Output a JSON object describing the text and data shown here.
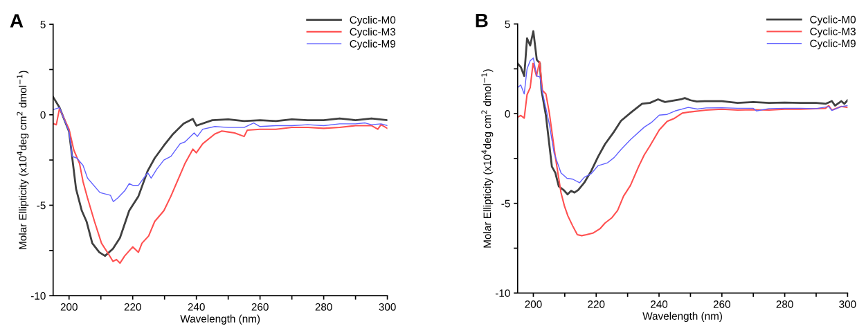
{
  "chart_data": [
    {
      "type": "line",
      "title": "A",
      "xlabel": "Wavelength (nm)",
      "ylabel": "Molar Ellipticity (x10$^{4}$deg cm$^{2}$ dmol$^{−1}$)",
      "xlim": [
        195,
        300
      ],
      "ylim": [
        -10,
        5
      ],
      "xticks": [
        200,
        {
          "value": 210,
          "label": null
        },
        220,
        {
          "value": 230,
          "label": null
        },
        240,
        {
          "value": 250,
          "label": null
        },
        260,
        {
          "value": 270,
          "label": null
        },
        280,
        {
          "value": 290,
          "label": null
        },
        300
      ],
      "yticks": [
        -10,
        {
          "value": -7.5,
          "label": null
        },
        -5,
        {
          "value": -2.5,
          "label": null
        },
        0,
        {
          "value": 2.5,
          "label": null
        },
        5
      ],
      "grid": false,
      "legend": "top right",
      "line_style": "solid",
      "marker": "none",
      "series": [
        {
          "name": "Cyclic-M0",
          "color": "#404040",
          "x": [
            195,
            197,
            200,
            202.2,
            204,
            205.5,
            207.3,
            209.5,
            211.3,
            213.8,
            216,
            218.9,
            221.8,
            224.7,
            226.9,
            229.8,
            232.7,
            236,
            238.9,
            240,
            245,
            250,
            255,
            260,
            265,
            270,
            275,
            280,
            285,
            290,
            295,
            300
          ],
          "values": [
            0.98,
            0.4,
            -0.93,
            -4.1,
            -5.3,
            -5.9,
            -7.1,
            -7.6,
            -7.8,
            -7.4,
            -6.8,
            -5.3,
            -4.5,
            -3.1,
            -2.4,
            -1.7,
            -1.06,
            -0.49,
            -0.23,
            -0.6,
            -0.3,
            -0.25,
            -0.35,
            -0.3,
            -0.35,
            -0.25,
            -0.3,
            -0.3,
            -0.2,
            -0.3,
            -0.2,
            -0.3
          ]
        },
        {
          "name": "Cyclic-M3",
          "color": "#ff5050",
          "x": [
            195,
            196,
            197,
            200,
            201.5,
            203.3,
            204.4,
            205.8,
            208,
            210.2,
            212.4,
            213.8,
            214.9,
            216,
            217.5,
            220,
            221.8,
            222.9,
            225,
            226.9,
            229.8,
            232,
            236.4,
            238.9,
            240,
            242,
            245.8,
            248,
            250,
            252,
            255,
            256,
            260,
            265,
            270,
            275,
            280,
            285,
            290,
            295,
            297,
            298,
            300
          ],
          "values": [
            -0.49,
            -0.55,
            0.35,
            -0.8,
            -1.95,
            -2.7,
            -3.7,
            -4.6,
            -5.9,
            -7.1,
            -7.7,
            -8.1,
            -8.0,
            -8.2,
            -7.8,
            -7.3,
            -7.6,
            -7.1,
            -6.7,
            -5.9,
            -5.3,
            -4.5,
            -2.7,
            -1.9,
            -2.1,
            -1.6,
            -1.06,
            -0.9,
            -0.95,
            -1.0,
            -1.2,
            -0.85,
            -0.8,
            -0.8,
            -0.7,
            -0.7,
            -0.75,
            -0.7,
            -0.6,
            -0.6,
            -0.8,
            -0.55,
            -0.75
          ]
        },
        {
          "name": "Cyclic-M9",
          "color": "#6060ff",
          "x": [
            195,
            197,
            200,
            201,
            202.5,
            204.4,
            205.8,
            209.7,
            213,
            213.9,
            215.3,
            217.5,
            218.9,
            220,
            221.8,
            224.7,
            225.8,
            227.6,
            229.8,
            232,
            234.9,
            236.4,
            239.3,
            240.3,
            242,
            245.8,
            250,
            255,
            258,
            260,
            265,
            270,
            275,
            280,
            285,
            290,
            293,
            295,
            298,
            300
          ],
          "values": [
            0.28,
            0.4,
            -0.93,
            -2.3,
            -2.4,
            -2.8,
            -3.5,
            -4.3,
            -4.45,
            -4.8,
            -4.6,
            -4.2,
            -3.8,
            -3.9,
            -3.9,
            -3.2,
            -3.5,
            -3.0,
            -2.5,
            -2.3,
            -1.6,
            -1.5,
            -1.0,
            -1.2,
            -0.8,
            -0.65,
            -0.7,
            -0.7,
            -0.45,
            -0.65,
            -0.6,
            -0.6,
            -0.55,
            -0.6,
            -0.5,
            -0.5,
            -0.45,
            -0.55,
            -0.5,
            -0.6
          ]
        }
      ]
    },
    {
      "type": "line",
      "title": "B",
      "xlabel": "Wavelength (nm)",
      "ylabel": "Molar Ellipticity (x10$^{4}$deg cm$^{2}$ dmol$^{−1}$)",
      "xlim": [
        195,
        300
      ],
      "ylim": [
        -10,
        5
      ],
      "xticks": [
        200,
        {
          "value": 210,
          "label": null
        },
        220,
        {
          "value": 230,
          "label": null
        },
        240,
        {
          "value": 250,
          "label": null
        },
        260,
        {
          "value": 270,
          "label": null
        },
        280,
        {
          "value": 290,
          "label": null
        },
        300
      ],
      "yticks": [
        -10,
        {
          "value": -7.5,
          "label": null
        },
        -5,
        {
          "value": -2.5,
          "label": null
        },
        0,
        {
          "value": 2.5,
          "label": null
        },
        5
      ],
      "grid": false,
      "legend": "top right",
      "line_style": "solid",
      "marker": "none",
      "series": [
        {
          "name": "Cyclic-M0",
          "color": "#404040",
          "x": [
            195,
            196,
            197.1,
            198,
            199,
            200,
            201.1,
            202.1,
            202.6,
            204,
            205.9,
            207,
            208.1,
            209.6,
            210.9,
            212,
            213.1,
            214.3,
            216.2,
            218.4,
            220.6,
            222.8,
            225.7,
            227.9,
            231.3,
            234.6,
            237.1,
            239.7,
            241.9,
            247,
            248.2,
            250,
            252,
            255,
            260,
            265,
            270,
            275,
            280,
            285,
            290,
            293,
            295,
            296,
            298,
            299,
            300
          ],
          "values": [
            2.8,
            2.6,
            2.1,
            4.2,
            3.8,
            4.6,
            3.0,
            2.8,
            1.3,
            -0.1,
            -2.95,
            -3.3,
            -4.05,
            -4.25,
            -4.5,
            -4.3,
            -4.4,
            -4.25,
            -3.85,
            -3.2,
            -2.4,
            -1.7,
            -1.0,
            -0.4,
            0.1,
            0.55,
            0.6,
            0.8,
            0.65,
            0.8,
            0.87,
            0.75,
            0.68,
            0.7,
            0.7,
            0.6,
            0.65,
            0.6,
            0.62,
            0.6,
            0.6,
            0.55,
            0.7,
            0.45,
            0.7,
            0.55,
            0.75
          ]
        },
        {
          "name": "Cyclic-M3",
          "color": "#ff5050",
          "x": [
            195,
            196,
            197.1,
            198,
            199,
            199.9,
            201,
            202,
            202.9,
            204,
            205.1,
            207,
            208.8,
            209.9,
            211,
            212.5,
            214,
            215.4,
            216.9,
            218,
            219.1,
            221.3,
            222.8,
            225,
            226.8,
            228.7,
            230.9,
            233.5,
            235.3,
            237.1,
            240.1,
            242.6,
            244.9,
            247.4,
            250,
            255,
            260,
            265,
            270,
            275,
            280,
            285,
            290,
            293,
            294,
            295,
            298,
            300
          ],
          "values": [
            -0.2,
            -0.1,
            -0.25,
            1.06,
            1.45,
            2.8,
            2.1,
            2.9,
            1.3,
            1.1,
            0.03,
            -2.4,
            -4.4,
            -5.15,
            -5.7,
            -6.25,
            -6.75,
            -6.8,
            -6.75,
            -6.7,
            -6.65,
            -6.4,
            -6.1,
            -5.8,
            -5.4,
            -4.6,
            -4.0,
            -2.95,
            -2.3,
            -1.8,
            -0.9,
            -0.43,
            -0.26,
            0.03,
            0.1,
            0.2,
            0.25,
            0.2,
            0.22,
            0.2,
            0.25,
            0.25,
            0.28,
            0.3,
            0.45,
            0.2,
            0.4,
            0.35
          ]
        },
        {
          "name": "Cyclic-M9",
          "color": "#6060ff",
          "x": [
            195,
            196,
            197.1,
            198,
            199,
            200,
            201.1,
            202.1,
            202.9,
            205.1,
            206.6,
            208.8,
            210.7,
            212.5,
            214.7,
            216.2,
            218.4,
            220.6,
            223.5,
            225.7,
            227.9,
            230.9,
            235.3,
            237.5,
            240.1,
            242.6,
            245.1,
            249.3,
            252.2,
            255,
            260,
            265,
            270,
            271,
            275,
            280,
            285,
            290,
            294,
            295,
            298,
            300
          ],
          "values": [
            1.45,
            1.6,
            1.1,
            2.5,
            2.95,
            3.1,
            2.1,
            2.05,
            1.2,
            -0.6,
            -2.2,
            -3.3,
            -3.6,
            -3.65,
            -3.85,
            -3.55,
            -3.35,
            -2.9,
            -2.75,
            -2.45,
            -2.0,
            -1.45,
            -0.75,
            -0.5,
            -0.08,
            -0.04,
            0.15,
            0.35,
            0.26,
            0.32,
            0.33,
            0.3,
            0.3,
            0.15,
            0.28,
            0.3,
            0.3,
            0.28,
            0.4,
            0.18,
            0.4,
            0.45
          ]
        }
      ]
    }
  ]
}
